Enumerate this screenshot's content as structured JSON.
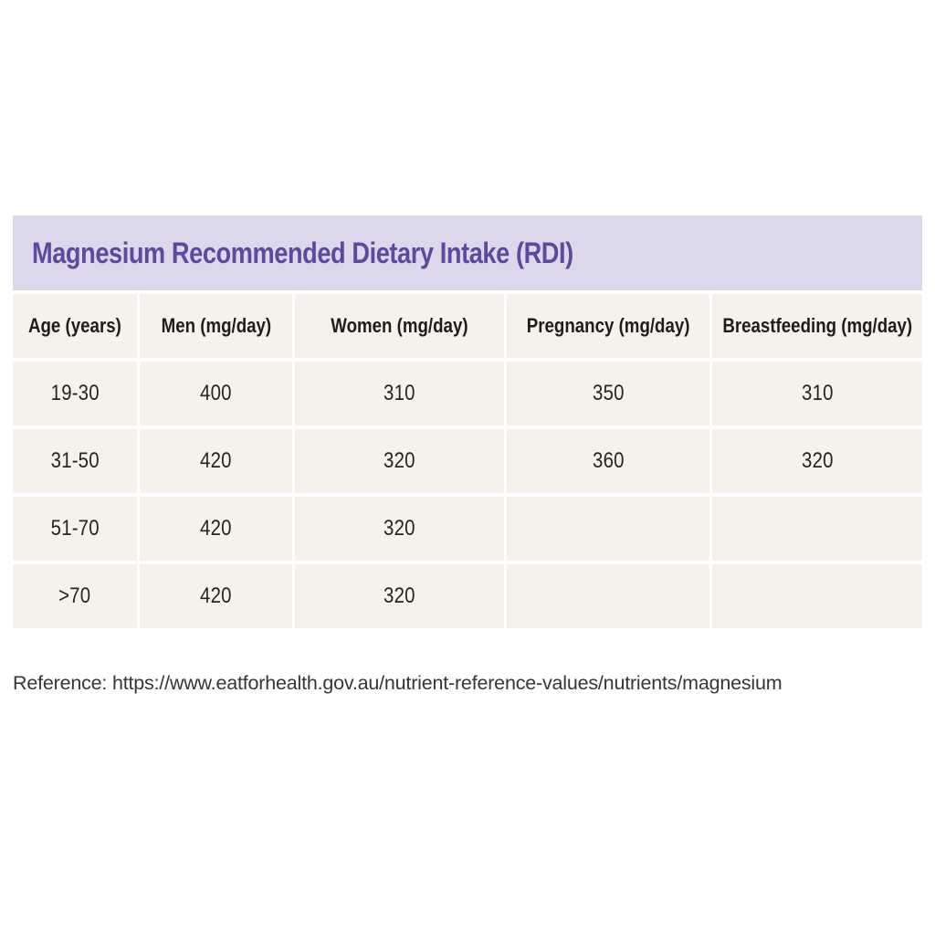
{
  "chart_data": {
    "type": "table",
    "title": "Magnesium Recommended Dietary Intake (RDI)",
    "columns": [
      "Age (years)",
      "Men (mg/day)",
      "Women (mg/day)",
      "Pregnancy (mg/day)",
      "Breastfeeding (mg/day)"
    ],
    "rows": [
      [
        "19-30",
        "400",
        "310",
        "350",
        "310"
      ],
      [
        "31-50",
        "420",
        "320",
        "360",
        "320"
      ],
      [
        "51-70",
        "420",
        "320",
        "",
        ""
      ],
      [
        ">70",
        "420",
        "320",
        "",
        ""
      ]
    ],
    "units": "mg/day",
    "layout_hints": {
      "title_band": true,
      "grid_gaps_visible": true,
      "empty_cells": [
        "rows 51-70 and >70 have no Pregnancy or Breastfeeding values"
      ]
    }
  },
  "reference": "Reference: https://www.eatforhealth.gov.au/nutrient-reference-values/nutrients/magnesium",
  "colors": {
    "title_band_bg": "#dcd7eb",
    "title_text": "#5b4a9e",
    "cell_bg": "#f6f2eb",
    "cell_text": "#262421",
    "reference_text": "#363636",
    "page_bg": "#ffffff"
  }
}
